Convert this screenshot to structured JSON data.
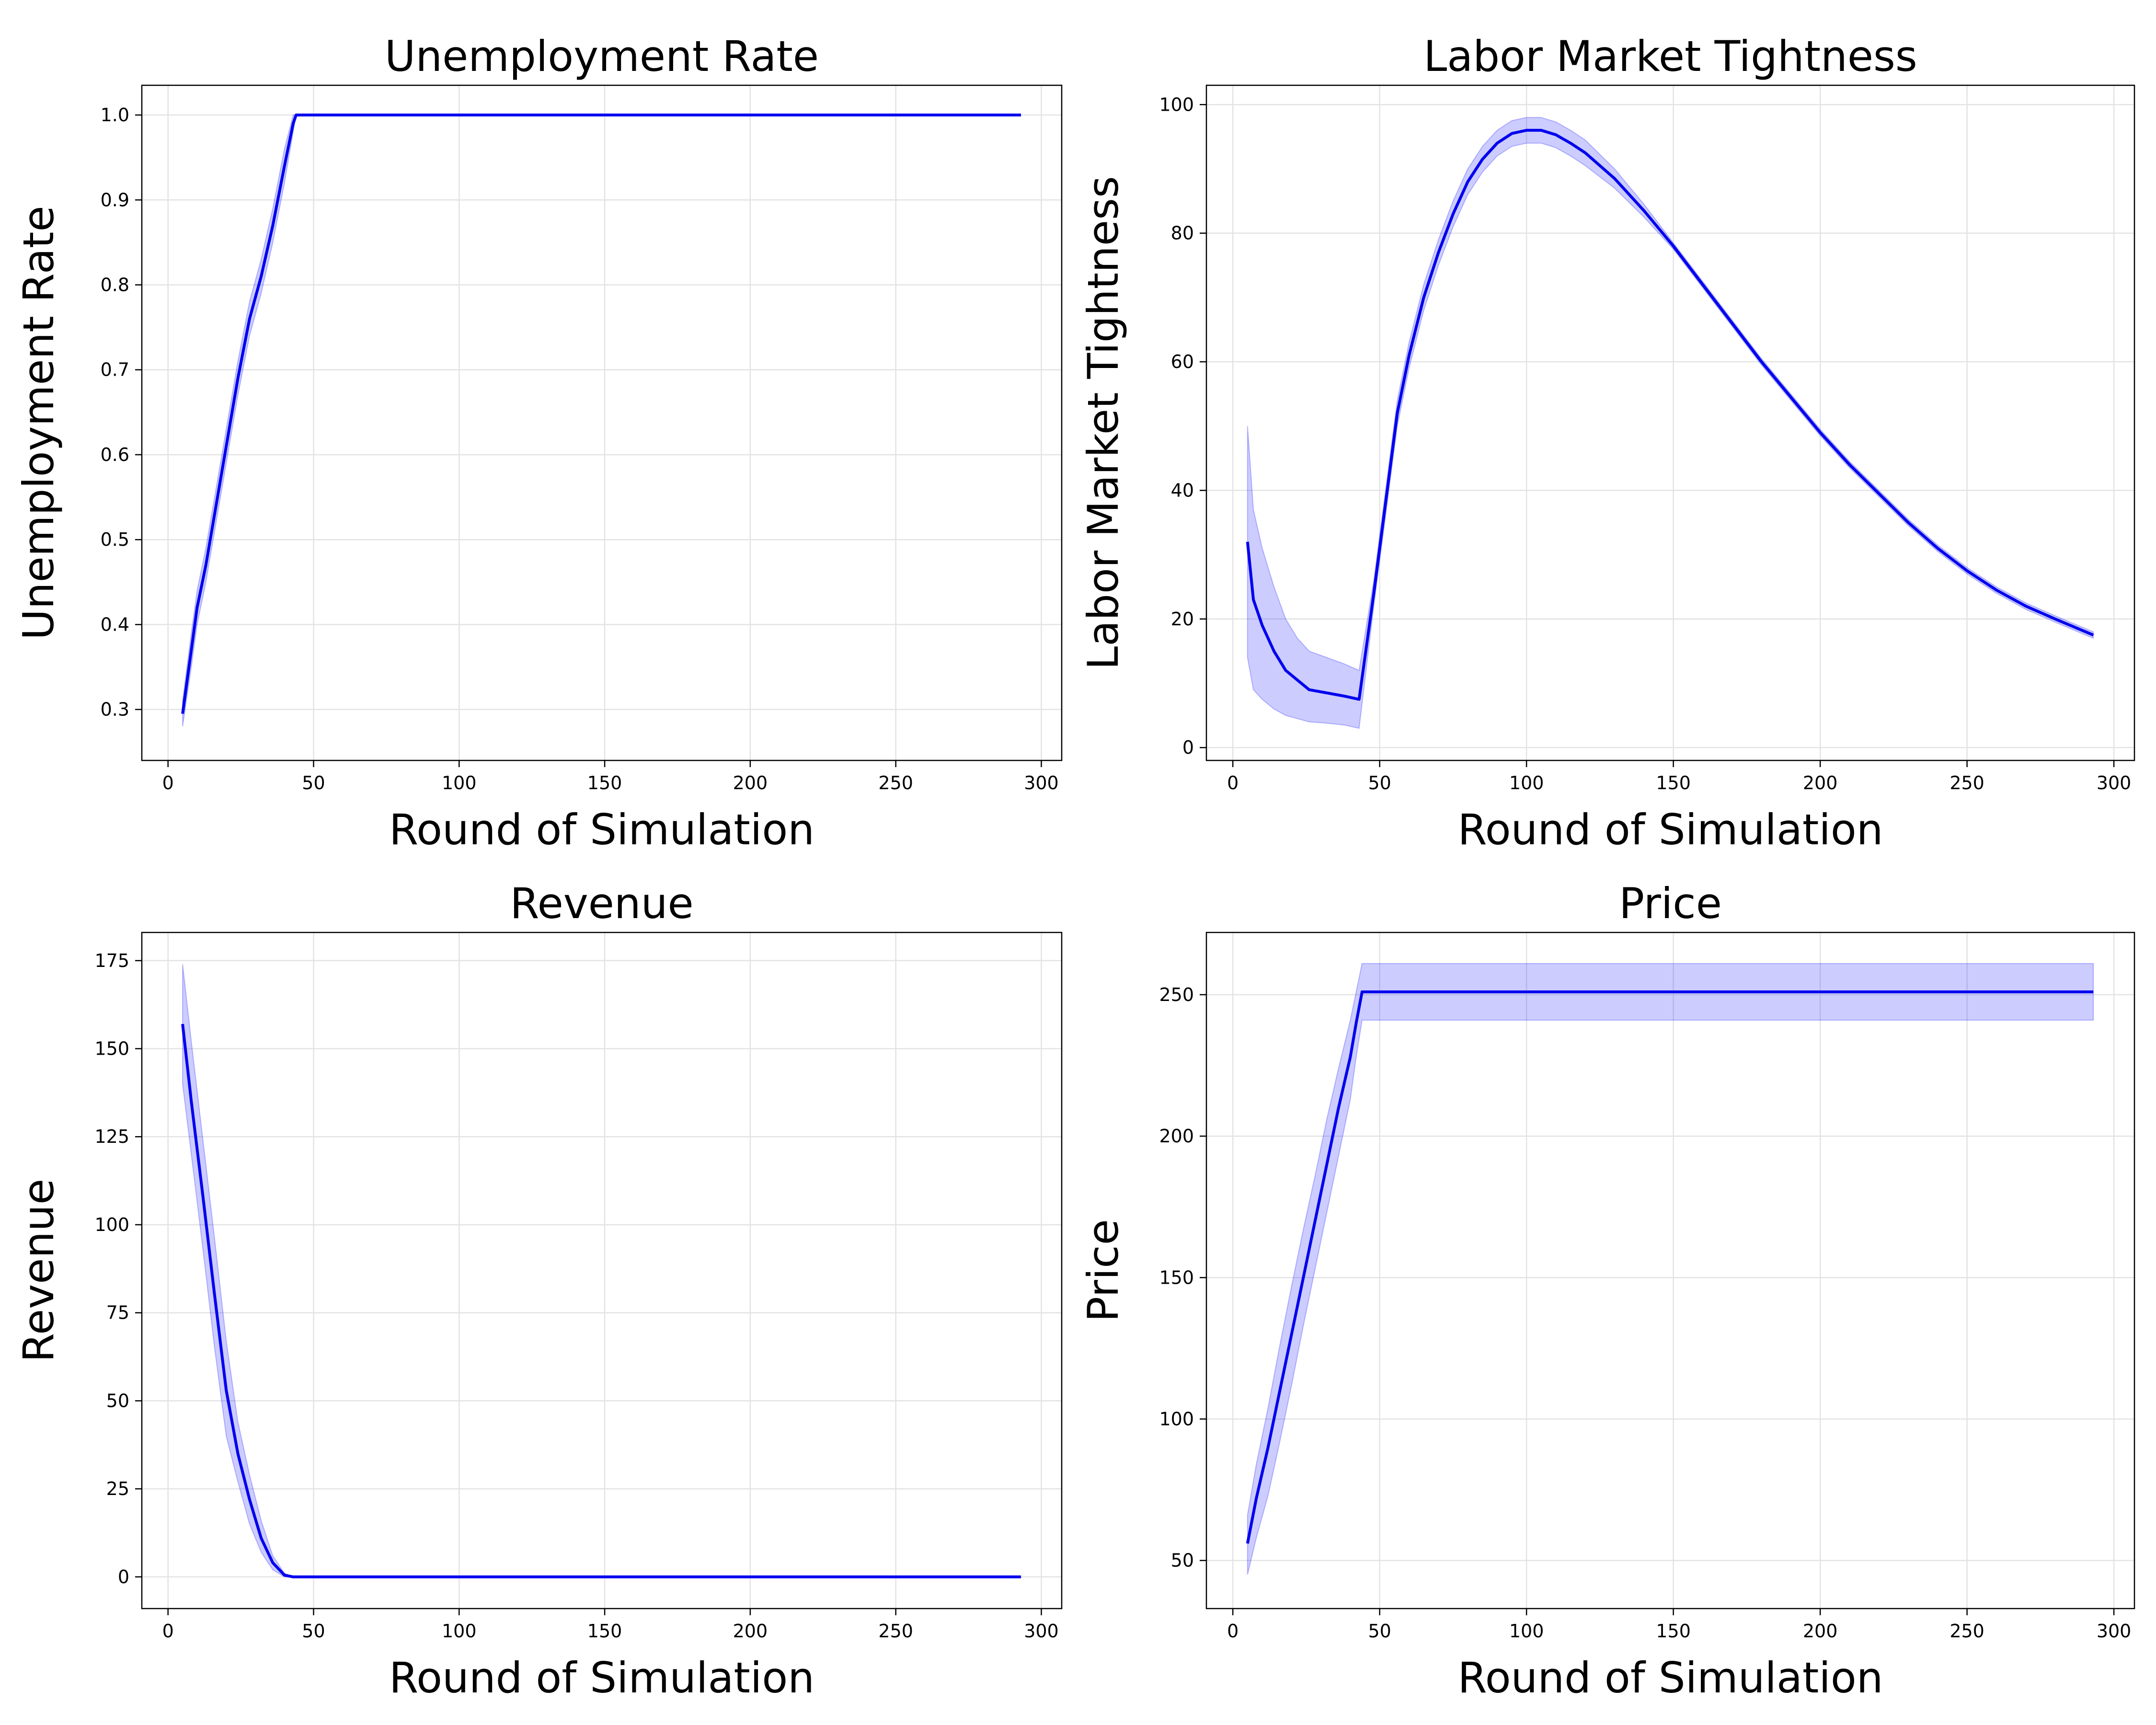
{
  "colors": {
    "line": "#0000ee",
    "band": "#0000ff"
  },
  "chart_data": [
    {
      "type": "line",
      "title": "Unemployment Rate",
      "xlabel": "Round of Simulation",
      "ylabel": "Unemployment Rate",
      "xlim": [
        -9,
        307
      ],
      "ylim": [
        0.24,
        1.035
      ],
      "xticks": [
        0,
        50,
        100,
        150,
        200,
        250,
        300
      ],
      "yticks": [
        0.3,
        0.4,
        0.5,
        0.6,
        0.7,
        0.8,
        0.9,
        1.0
      ],
      "yticklabels": [
        "0.3",
        "0.4",
        "0.5",
        "0.6",
        "0.7",
        "0.8",
        "0.9",
        "1.0"
      ],
      "grid": true,
      "series": [
        {
          "x": [
            5,
            8,
            10,
            13,
            16,
            20,
            24,
            28,
            32,
            36,
            40,
            43,
            44,
            50,
            100,
            150,
            200,
            250,
            293
          ],
          "y": [
            0.295,
            0.37,
            0.42,
            0.47,
            0.53,
            0.61,
            0.69,
            0.76,
            0.81,
            0.87,
            0.94,
            0.99,
            1.0,
            1.0,
            1.0,
            1.0,
            1.0,
            1.0,
            1.0
          ],
          "lower": [
            0.28,
            0.35,
            0.4,
            0.45,
            0.51,
            0.59,
            0.67,
            0.74,
            0.79,
            0.85,
            0.92,
            0.98,
            1.0,
            1.0,
            1.0,
            1.0,
            1.0,
            1.0,
            1.0
          ],
          "upper": [
            0.31,
            0.39,
            0.44,
            0.49,
            0.55,
            0.63,
            0.71,
            0.78,
            0.83,
            0.89,
            0.96,
            1.0,
            1.0,
            1.0,
            1.0,
            1.0,
            1.0,
            1.0,
            1.0
          ]
        }
      ]
    },
    {
      "type": "line",
      "title": "Labor Market Tightness",
      "xlabel": "Round of Simulation",
      "ylabel": "Labor Market Tightness",
      "xlim": [
        -9,
        307
      ],
      "ylim": [
        -2,
        103
      ],
      "xticks": [
        0,
        50,
        100,
        150,
        200,
        250,
        300
      ],
      "yticks": [
        0,
        20,
        40,
        60,
        80,
        100
      ],
      "yticklabels": [
        "0",
        "20",
        "40",
        "60",
        "80",
        "100"
      ],
      "grid": true,
      "series": [
        {
          "x": [
            5,
            7,
            10,
            14,
            18,
            22,
            26,
            32,
            38,
            43,
            48,
            52,
            56,
            60,
            65,
            70,
            75,
            80,
            85,
            90,
            95,
            100,
            105,
            110,
            115,
            120,
            130,
            140,
            150,
            160,
            170,
            180,
            190,
            200,
            210,
            220,
            230,
            240,
            250,
            260,
            270,
            280,
            293
          ],
          "y": [
            32,
            23,
            19,
            15,
            12,
            10.5,
            9,
            8.5,
            8,
            7.5,
            24,
            38,
            52,
            61,
            70,
            77,
            83,
            88,
            91.5,
            94,
            95.5,
            96,
            96,
            95.3,
            94,
            92.5,
            88.5,
            83.5,
            78,
            72,
            66,
            60,
            54.5,
            49,
            44,
            39.5,
            35,
            31,
            27.5,
            24.5,
            22,
            20,
            17.5
          ],
          "lower": [
            14,
            9,
            7.5,
            6,
            5,
            4.5,
            4,
            3.8,
            3.5,
            3,
            22,
            36,
            50,
            59,
            68,
            75,
            81,
            86,
            89.5,
            92,
            93.5,
            94,
            94,
            93.3,
            92,
            90.5,
            87,
            82.5,
            77.5,
            71.5,
            65.5,
            59.5,
            54,
            48.5,
            43.5,
            39,
            34.5,
            30.5,
            27,
            24,
            21.5,
            19.5,
            17
          ],
          "upper": [
            50,
            37,
            31,
            25,
            20,
            17,
            15,
            14,
            13,
            12,
            26,
            40,
            54,
            63,
            72,
            79,
            85,
            90,
            93.5,
            96,
            97.5,
            98,
            98,
            97.3,
            96,
            94.5,
            90,
            84.5,
            78.5,
            72.5,
            66.5,
            60.5,
            55,
            49.5,
            44.5,
            40,
            35.5,
            31.5,
            28,
            25,
            22.5,
            20.5,
            18
          ]
        }
      ]
    },
    {
      "type": "line",
      "title": "Revenue",
      "xlabel": "Round of Simulation",
      "ylabel": "Revenue",
      "xlim": [
        -9,
        307
      ],
      "ylim": [
        -9,
        183
      ],
      "xticks": [
        0,
        50,
        100,
        150,
        200,
        250,
        300
      ],
      "yticks": [
        0,
        25,
        50,
        75,
        100,
        125,
        150,
        175
      ],
      "yticklabels": [
        "0",
        "25",
        "50",
        "75",
        "100",
        "125",
        "150",
        "175"
      ],
      "grid": true,
      "series": [
        {
          "x": [
            5,
            8,
            12,
            16,
            20,
            24,
            28,
            32,
            36,
            40,
            43,
            50,
            100,
            150,
            200,
            250,
            293
          ],
          "y": [
            157,
            135,
            108,
            80,
            53,
            35,
            22,
            11,
            4,
            0.5,
            0,
            0,
            0,
            0,
            0,
            0,
            0
          ],
          "lower": [
            140,
            120,
            93,
            65,
            40,
            27,
            15,
            7,
            2,
            0,
            0,
            0,
            0,
            0,
            0,
            0,
            0
          ],
          "upper": [
            174,
            152,
            124,
            96,
            67,
            44,
            29,
            16,
            6,
            1,
            0,
            0,
            0,
            0,
            0,
            0,
            0
          ]
        }
      ]
    },
    {
      "type": "line",
      "title": "Price",
      "xlabel": "Round of Simulation",
      "ylabel": "Price",
      "xlim": [
        -9,
        307
      ],
      "ylim": [
        33,
        272
      ],
      "xticks": [
        0,
        50,
        100,
        150,
        200,
        250,
        300
      ],
      "yticks": [
        50,
        100,
        150,
        200,
        250
      ],
      "yticklabels": [
        "50",
        "100",
        "150",
        "200",
        "250"
      ],
      "grid": true,
      "series": [
        {
          "x": [
            5,
            8,
            12,
            16,
            20,
            24,
            28,
            32,
            36,
            40,
            42,
            44,
            50,
            100,
            150,
            200,
            250,
            293
          ],
          "y": [
            56,
            72,
            90,
            110,
            130,
            150,
            170,
            190,
            210,
            228,
            240,
            251,
            251,
            251,
            251,
            251,
            251,
            251
          ],
          "lower": [
            45,
            58,
            73,
            92,
            112,
            133,
            153,
            173,
            193,
            213,
            228,
            241,
            241,
            241,
            241,
            241,
            241,
            241
          ],
          "upper": [
            66,
            84,
            104,
            126,
            147,
            167,
            186,
            206,
            224,
            241,
            251,
            261,
            261,
            261,
            261,
            261,
            261,
            261
          ]
        }
      ]
    }
  ]
}
